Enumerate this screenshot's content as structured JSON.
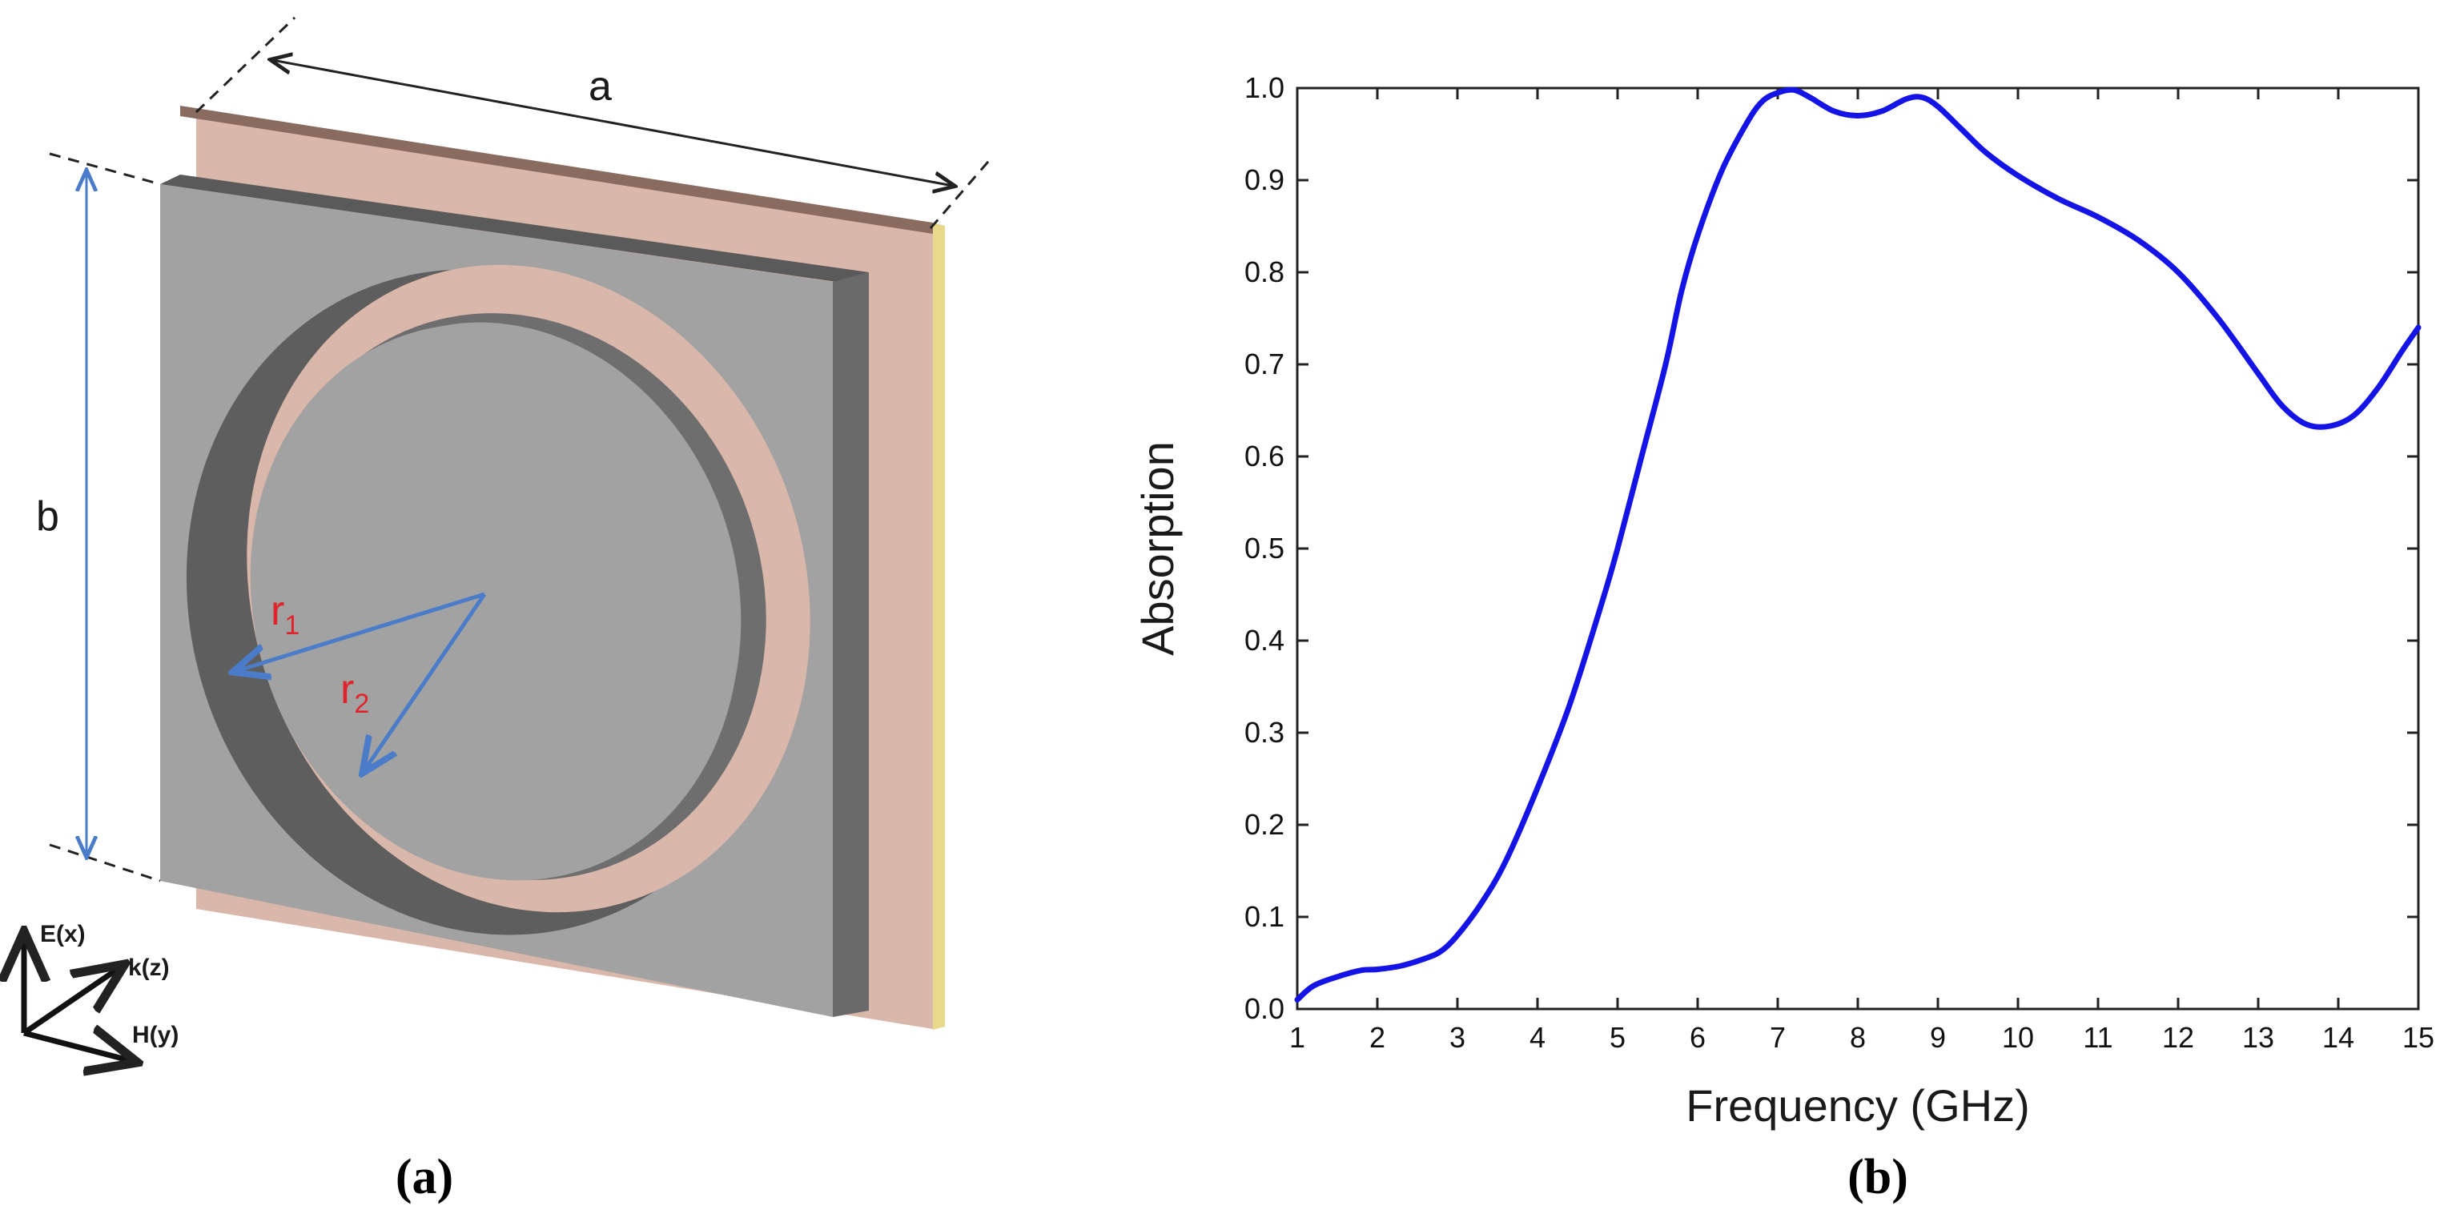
{
  "panel_a": {
    "caption": "(a)",
    "dim_a": "a",
    "dim_b": "b",
    "r1": {
      "base": "r",
      "sub": "1"
    },
    "r2": {
      "base": "r",
      "sub": "2"
    },
    "axes": {
      "e": "E(x)",
      "k": "k(z)",
      "h": "H(y)"
    },
    "colors": {
      "metal": "#a2a2a2",
      "metal_side": "#6a6a6a",
      "substrate": "#d9b7aa",
      "arrow": "#4a7cc9",
      "label_red": "#e0242c"
    }
  },
  "panel_b": {
    "caption": "(b)"
  },
  "chart_data": {
    "type": "line",
    "xlabel": "Frequency (GHz)",
    "ylabel": "Absorption",
    "xlim": [
      1,
      15
    ],
    "ylim": [
      0,
      1
    ],
    "xticks": [
      "1",
      "2",
      "3",
      "4",
      "5",
      "6",
      "7",
      "8",
      "9",
      "10",
      "11",
      "12",
      "13",
      "14",
      "15"
    ],
    "yticks": [
      "0.0",
      "0.1",
      "0.2",
      "0.3",
      "0.4",
      "0.5",
      "0.6",
      "0.7",
      "0.8",
      "0.9",
      "1.0"
    ],
    "grid": false,
    "series": [
      {
        "color": "#1414e6",
        "x": [
          1.0,
          1.2,
          1.5,
          1.8,
          2.0,
          2.3,
          2.6,
          2.8,
          3.0,
          3.3,
          3.6,
          4.0,
          4.4,
          4.8,
          5.0,
          5.3,
          5.6,
          5.8,
          6.0,
          6.3,
          6.6,
          6.8,
          7.0,
          7.2,
          7.4,
          7.7,
          8.0,
          8.3,
          8.6,
          8.8,
          9.0,
          9.3,
          9.6,
          10.0,
          10.5,
          11.0,
          11.5,
          12.0,
          12.5,
          13.0,
          13.3,
          13.6,
          13.9,
          14.2,
          14.5,
          14.8,
          15.0
        ],
        "y": [
          0.01,
          0.025,
          0.035,
          0.042,
          0.043,
          0.047,
          0.055,
          0.063,
          0.08,
          0.115,
          0.16,
          0.24,
          0.33,
          0.44,
          0.5,
          0.6,
          0.7,
          0.78,
          0.84,
          0.91,
          0.96,
          0.985,
          0.995,
          0.998,
          0.99,
          0.975,
          0.97,
          0.975,
          0.988,
          0.99,
          0.98,
          0.955,
          0.93,
          0.905,
          0.88,
          0.86,
          0.835,
          0.8,
          0.75,
          0.69,
          0.655,
          0.635,
          0.633,
          0.645,
          0.675,
          0.715,
          0.74
        ]
      }
    ]
  }
}
